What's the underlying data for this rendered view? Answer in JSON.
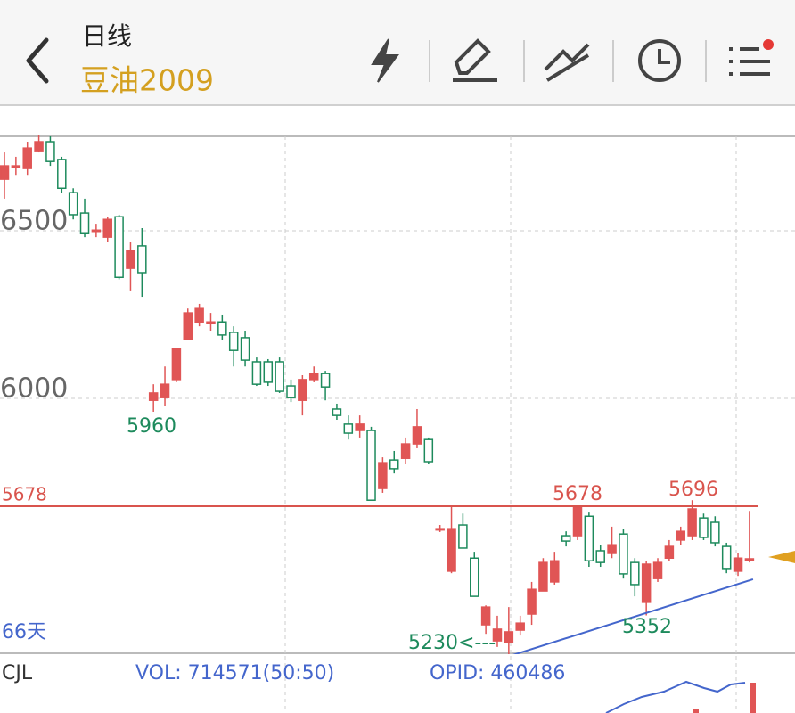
{
  "header": {
    "title": "日线",
    "symbol": "豆油2009"
  },
  "chart_data": {
    "type": "candlestick",
    "open": [
      6654,
      6694,
      6686,
      6739,
      6766,
      6713,
      6614,
      6553,
      6502,
      6481,
      6542,
      6388,
      6455,
      5994,
      6002,
      6056,
      6175,
      6228,
      6228,
      6228,
      6197,
      6181,
      6109,
      6109,
      6109,
      6037,
      5994,
      6056,
      6074,
      5968,
      5923,
      5904,
      5904,
      5731,
      5816,
      5821,
      5864,
      5877,
      5611,
      5484,
      5622,
      5523,
      5324,
      5276,
      5271,
      5308,
      5356,
      5425,
      5452,
      5590,
      5590,
      5648,
      5545,
      5537,
      5595,
      5510,
      5391,
      5462,
      5523,
      5577,
      5590,
      5643,
      5630,
      5558,
      5484,
      5521
    ],
    "high": [
      6734,
      6721,
      6766,
      6787,
      6782,
      6721,
      6627,
      6596,
      6521,
      6542,
      6548,
      6468,
      6508,
      6042,
      6095,
      6149,
      6268,
      6282,
      6255,
      6250,
      6215,
      6202,
      6122,
      6117,
      6122,
      6056,
      6069,
      6095,
      6082,
      5984,
      5949,
      5949,
      5915,
      5824,
      5843,
      5883,
      5968,
      5883,
      5622,
      5680,
      5656,
      5542,
      5382,
      5351,
      5377,
      5351,
      5452,
      5523,
      5542,
      5603,
      5678,
      5659,
      5563,
      5617,
      5611,
      5523,
      5515,
      5523,
      5577,
      5617,
      5696,
      5656,
      5648,
      5569,
      5537,
      5664
    ],
    "low": [
      6596,
      6667,
      6667,
      6734,
      6694,
      6614,
      6534,
      6481,
      6481,
      6468,
      6355,
      6322,
      6303,
      5960,
      5976,
      6048,
      6175,
      6215,
      6202,
      6175,
      6095,
      6095,
      6037,
      6037,
      6016,
      5989,
      5949,
      6048,
      5994,
      5936,
      5877,
      5883,
      5696,
      5718,
      5776,
      5803,
      5851,
      5803,
      5601,
      5478,
      5553,
      5409,
      5297,
      5258,
      5230,
      5292,
      5324,
      5425,
      5444,
      5558,
      5577,
      5497,
      5497,
      5523,
      5462,
      5409,
      5352,
      5452,
      5515,
      5563,
      5577,
      5577,
      5558,
      5478,
      5470,
      5510
    ],
    "close": [
      6694,
      6694,
      6747,
      6766,
      6707,
      6627,
      6548,
      6494,
      6502,
      6534,
      6361,
      6441,
      6375,
      6016,
      6042,
      6149,
      6255,
      6268,
      6228,
      6189,
      6143,
      6114,
      6042,
      6048,
      6021,
      6002,
      6056,
      6074,
      6034,
      5949,
      5896,
      5923,
      5696,
      5808,
      5790,
      5864,
      5915,
      5811,
      5611,
      5611,
      5553,
      5409,
      5377,
      5311,
      5303,
      5329,
      5430,
      5510,
      5515,
      5574,
      5675,
      5515,
      5510,
      5563,
      5476,
      5444,
      5505,
      5510,
      5558,
      5603,
      5670,
      5585,
      5569,
      5492,
      5523,
      5521
    ],
    "up_color": "#e05555",
    "down_color": "#1d8a5c",
    "ylim": [
      5239,
      6782
    ],
    "yticks": [
      6000,
      6500
    ],
    "grid": true,
    "level_line": {
      "value": 5678,
      "label": "5678",
      "color": "#d9544d"
    },
    "trendline": {
      "start_index": 44,
      "start_value": 5230,
      "end_index": 65,
      "end_value": 5460,
      "color": "#4466cc"
    },
    "annotations": {
      "low_1": "5960",
      "low_2": "5230<---",
      "low_3": "5352",
      "high_1": "5678",
      "high_2": "5696",
      "days": "66天"
    }
  },
  "indicator": {
    "name": "CJL",
    "vol": "VOL: 714571(50:50)",
    "opid": "OPID: 460486"
  }
}
